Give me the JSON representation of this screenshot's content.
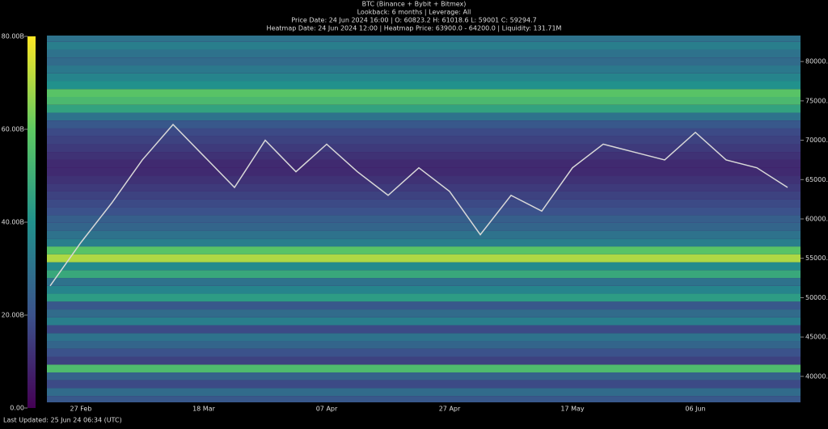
{
  "chart_data": {
    "type": "heatmap-line",
    "title": "BTC (Binance + Bybit + Bitmex)",
    "subtitles": [
      "Lookback: 6 months | Leverage: All",
      "Price Date: 24 Jun 2024 16:00 | O: 60823.2 H: 61018.6 L: 59001 C: 59294.7",
      "Heatmap Date: 24 Jun 2024 12:00 | Heatmap Price: 63900.0 - 64200.0 | Liquidity: 131.71M"
    ],
    "footer": "Last Updated: 25 Jun 24 06:34 (UTC)",
    "categories": [
      null,
      "27 Feb",
      null,
      null,
      null,
      "18 Mar",
      null,
      null,
      null,
      "07 Apr",
      null,
      null,
      null,
      "27 Apr",
      null,
      null,
      null,
      "17 May",
      null,
      null,
      null,
      "06 Jun",
      null,
      null,
      null
    ],
    "series": [
      {
        "color": "#d8d8d8",
        "values": [
          51500,
          57000,
          62000,
          67500,
          72000,
          68000,
          64000,
          70000,
          66000,
          69500,
          66000,
          63000,
          66500,
          63500,
          58000,
          63000,
          61000,
          66500,
          69500,
          68500,
          67500,
          71000,
          67500,
          66500,
          64000
        ]
      }
    ],
    "heatmap": {
      "levels": [
        37000,
        38000,
        39000,
        40000,
        41000,
        42000,
        43000,
        44000,
        45000,
        46000,
        47000,
        48000,
        49000,
        50000,
        51000,
        52000,
        53000,
        54000,
        55000,
        56000,
        57000,
        58000,
        59000,
        60000,
        61000,
        62000,
        63000,
        64000,
        65000,
        66000,
        67000,
        68000,
        69000,
        70000,
        71000,
        72000,
        73000,
        74000,
        75000,
        76000,
        77000,
        78000,
        79000,
        80000,
        81000,
        82000,
        83000
      ],
      "values": [
        22,
        28,
        18,
        25,
        55,
        16,
        20,
        26,
        30,
        18,
        34,
        28,
        22,
        44,
        36,
        30,
        48,
        38,
        70,
        58,
        34,
        30,
        26,
        24,
        20,
        18,
        16,
        14,
        12,
        10,
        10,
        12,
        14,
        16,
        18,
        22,
        30,
        46,
        54,
        58,
        40,
        36,
        32,
        28,
        30,
        34,
        30
      ]
    },
    "colormap": [
      "#440154",
      "#3b528b",
      "#21918c",
      "#5ec962",
      "#fde725"
    ],
    "ylim": [
      36700,
      83300
    ],
    "yticks": [
      {
        "value": 40000,
        "label": "40000.0"
      },
      {
        "value": 45000,
        "label": "45000.0"
      },
      {
        "value": 50000,
        "label": "50000.0"
      },
      {
        "value": 55000,
        "label": "55000.0"
      },
      {
        "value": 60000,
        "label": "60000.0"
      },
      {
        "value": 65000,
        "label": "65000.0"
      },
      {
        "value": 70000,
        "label": "70000.0"
      },
      {
        "value": 75000,
        "label": "75000.0"
      },
      {
        "value": 80000,
        "label": "80000.0"
      }
    ],
    "clim": [
      0,
      80
    ],
    "cticks": [
      {
        "value": 0,
        "label": "0.00"
      },
      {
        "value": 20,
        "label": "20.00B"
      },
      {
        "value": 40,
        "label": "40.00B"
      },
      {
        "value": 60,
        "label": "60.00B"
      },
      {
        "value": 80,
        "label": "80.00B"
      }
    ]
  }
}
